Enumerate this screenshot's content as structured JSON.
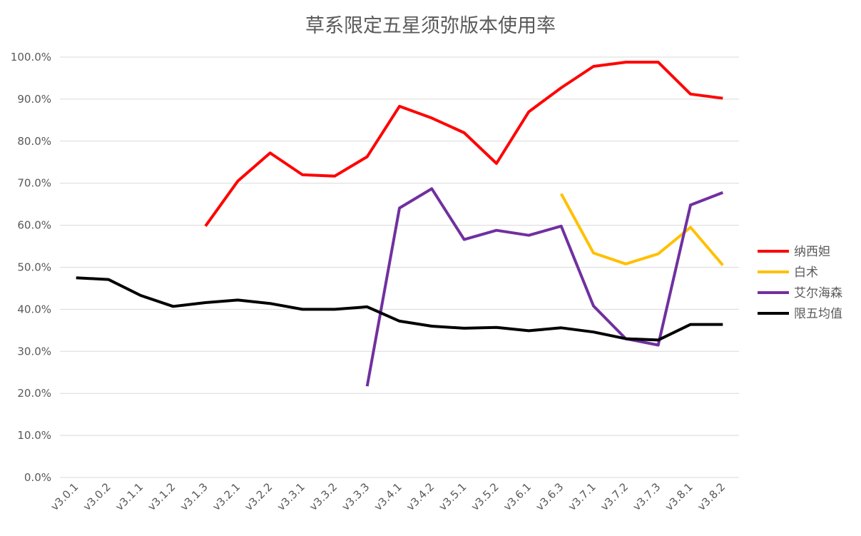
{
  "chart_data": {
    "type": "line",
    "title": "草系限定五星须弥版本使用率",
    "xlabel": "",
    "ylabel": "",
    "categories": [
      "v3.0.1",
      "v3.0.2",
      "v3.1.1",
      "v3.1.2",
      "v3.1.3",
      "v3.2.1",
      "v3.2.2",
      "v3.3.1",
      "v3.3.2",
      "v3.3.3",
      "v3.4.1",
      "v3.4.2",
      "v3.5.1",
      "v3.5.2",
      "v3.6.1",
      "v3.6.3",
      "v3.7.1",
      "v3.7.2",
      "v3.7.3",
      "v3.8.1",
      "v3.8.2"
    ],
    "ylim": [
      0,
      100
    ],
    "yticks": [
      "0.0%",
      "10.0%",
      "20.0%",
      "30.0%",
      "40.0%",
      "50.0%",
      "60.0%",
      "70.0%",
      "80.0%",
      "90.0%",
      "100.0%"
    ],
    "grid": true,
    "legend_position": "right",
    "series": [
      {
        "name": "纳西妲",
        "color": "#ff0000",
        "values": [
          null,
          null,
          null,
          null,
          59.8,
          70.5,
          77.2,
          72.0,
          71.7,
          76.3,
          88.3,
          85.5,
          82.0,
          74.7,
          87.0,
          92.7,
          97.8,
          98.8,
          98.8,
          91.2,
          90.2
        ]
      },
      {
        "name": "白术",
        "color": "#ffc000",
        "values": [
          null,
          null,
          null,
          null,
          null,
          null,
          null,
          null,
          null,
          null,
          null,
          null,
          null,
          null,
          null,
          67.5,
          53.4,
          50.8,
          53.2,
          59.5,
          50.5
        ]
      },
      {
        "name": "艾尔海森",
        "color": "#7030a0",
        "values": [
          null,
          null,
          null,
          null,
          null,
          null,
          null,
          null,
          null,
          21.7,
          64.1,
          68.7,
          56.6,
          58.8,
          57.6,
          59.8,
          40.8,
          33.0,
          31.5,
          64.8,
          67.8
        ]
      },
      {
        "name": "限五均值",
        "color": "#000000",
        "values": [
          47.5,
          47.1,
          43.3,
          40.7,
          41.6,
          42.2,
          41.4,
          40.0,
          40.0,
          40.6,
          37.2,
          36.0,
          35.5,
          35.7,
          34.9,
          35.6,
          34.6,
          33.0,
          32.7,
          36.4,
          36.4
        ]
      }
    ]
  }
}
